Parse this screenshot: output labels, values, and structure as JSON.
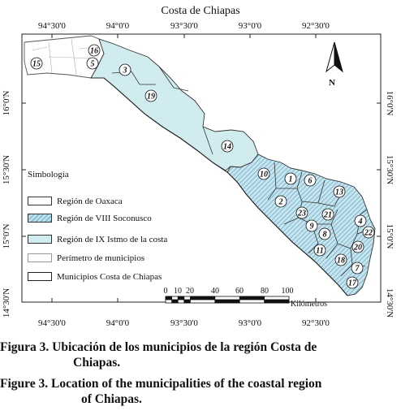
{
  "map": {
    "title": "Costa de Chiapas",
    "top_ticks": [
      "94°30'0",
      "94°0'0",
      "93°30'0",
      "93°0'0",
      "92°30'0"
    ],
    "bottom_ticks": [
      "94°30'0",
      "94°0'0",
      "93°30'0",
      "93°0'0",
      "92°30'0"
    ],
    "left_ticks": [
      "16°0'N",
      "15°30'N",
      "15°0'N",
      "14°30'N"
    ],
    "right_ticks": [
      "16°0'N",
      "15°30'N",
      "15°0'N",
      "14°30'N"
    ],
    "north_label": "N",
    "municipality_labels": [
      "16",
      "15",
      "5",
      "3",
      "19",
      "14",
      "10",
      "1",
      "6",
      "13",
      "2",
      "23",
      "21",
      "4",
      "9",
      "8",
      "22",
      "11",
      "20",
      "18",
      "7",
      "17"
    ],
    "colors": {
      "istmo": "#d0ecef",
      "soconusco": "#a9d6e4",
      "oaxaca": "#ffffff",
      "border": "#333333"
    }
  },
  "legend": {
    "title": "Simbología",
    "items": [
      {
        "label": "Región de Oaxaca"
      },
      {
        "label": "Región de VIII Soconusco"
      },
      {
        "label": "Región de IX Istmo de la costa"
      },
      {
        "label": "Perímetro de municipios"
      },
      {
        "label": "Municipios Costa de Chiapas"
      }
    ]
  },
  "scale": {
    "labels": [
      "0",
      "10",
      "20",
      "40",
      "60",
      "80",
      "100"
    ],
    "unit": "Kilómetros"
  },
  "caption": {
    "es_line1": "Figura 3. Ubicación de los municipios de la región Costa de",
    "es_line2": "Chiapas.",
    "en_line1": "Figure 3. Location of the municipalities of the coastal region",
    "en_line2": "of Chiapas."
  }
}
